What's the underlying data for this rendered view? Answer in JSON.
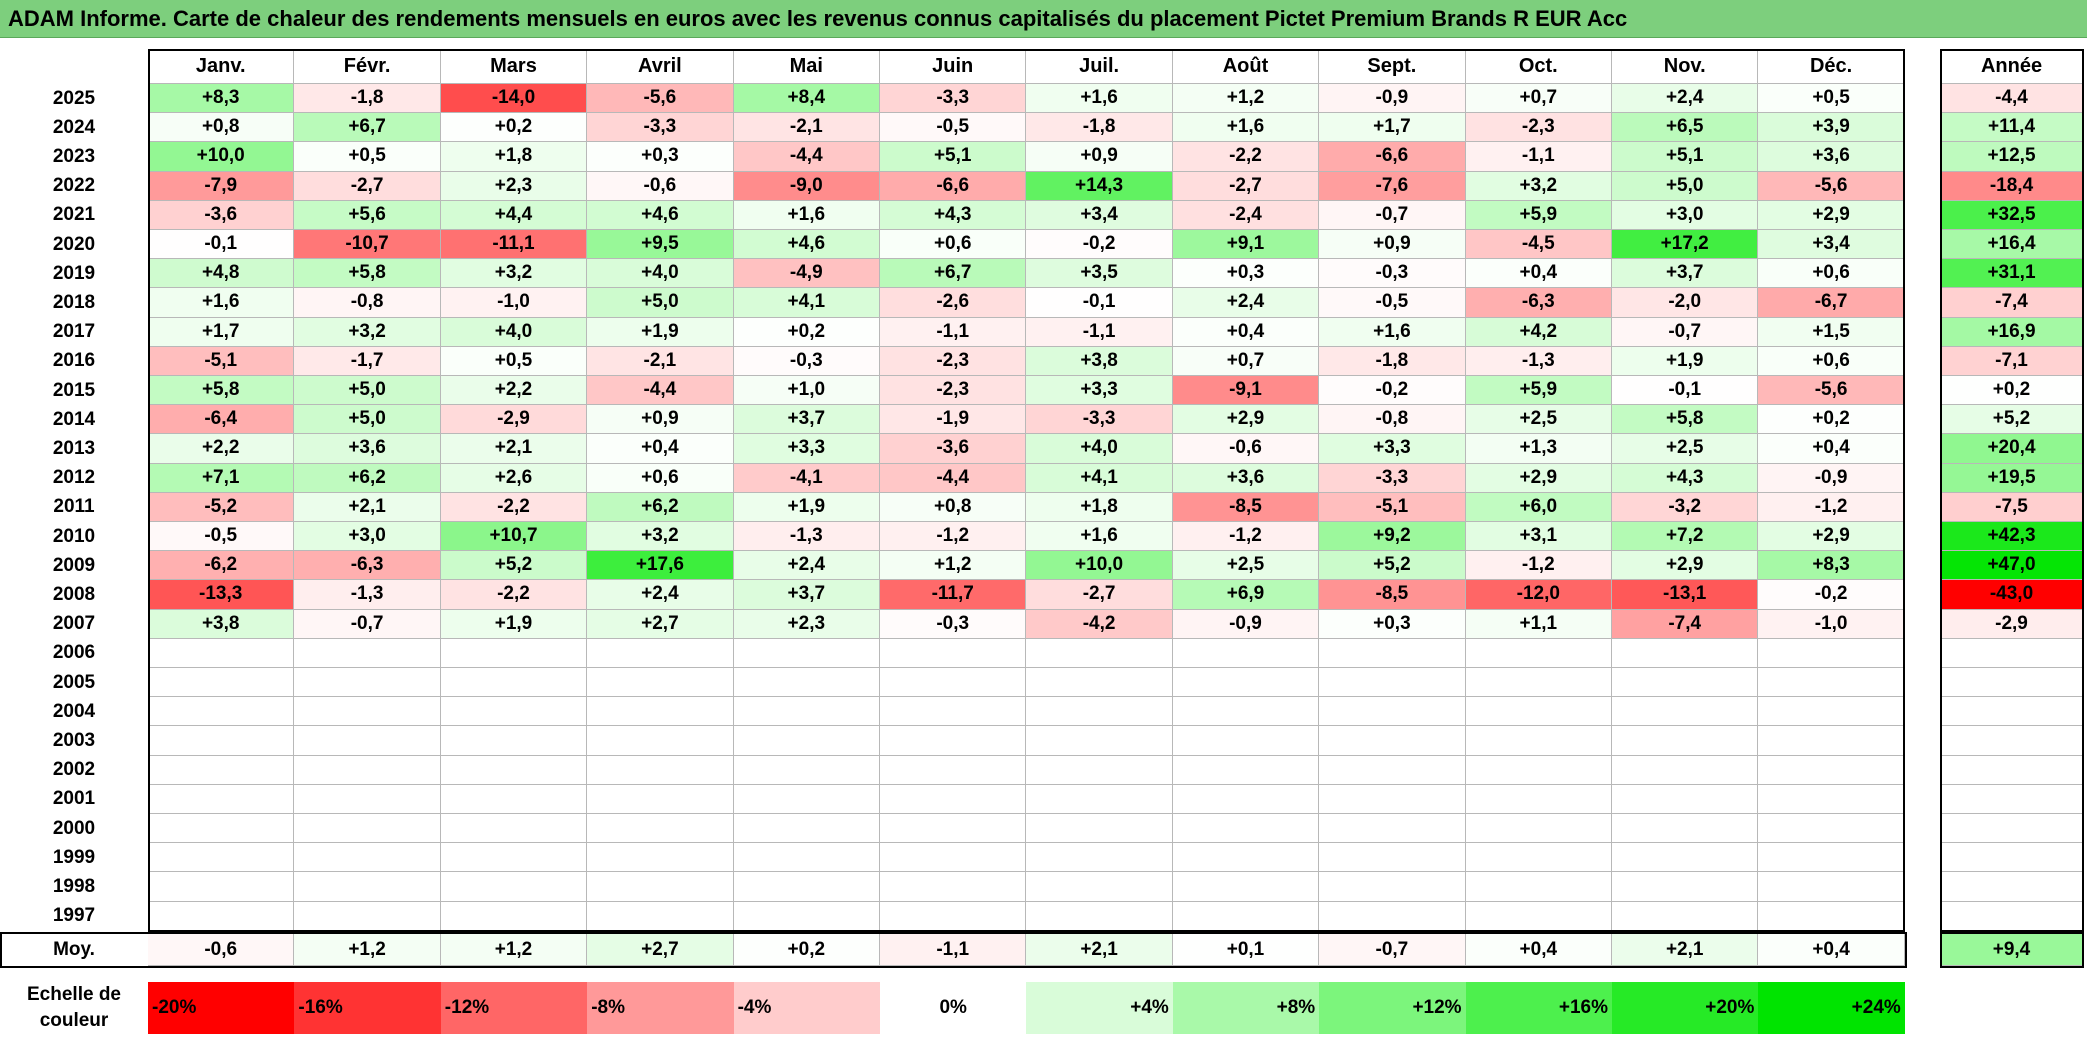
{
  "title": "ADAM Informe. Carte de chaleur des rendements mensuels en euros avec les revenus connus capitalisés du placement Pictet Premium Brands R EUR Acc",
  "chart_data": {
    "type": "heatmap",
    "columns": [
      "Janv.",
      "Févr.",
      "Mars",
      "Avril",
      "Mai",
      "Juin",
      "Juil.",
      "Août",
      "Sept.",
      "Oct.",
      "Nov.",
      "Déc."
    ],
    "annual_header": "Année",
    "rows": [
      {
        "year": "2025",
        "values": [
          "+8,3",
          "-1,8",
          "-14,0",
          "-5,6",
          "+8,4",
          "-3,3",
          "+1,6",
          "+1,2",
          "-0,9",
          "+0,7",
          "+2,4",
          "+0,5"
        ],
        "annual": "-4,4"
      },
      {
        "year": "2024",
        "values": [
          "+0,8",
          "+6,7",
          "+0,2",
          "-3,3",
          "-2,1",
          "-0,5",
          "-1,8",
          "+1,6",
          "+1,7",
          "-2,3",
          "+6,5",
          "+3,9"
        ],
        "annual": "+11,4"
      },
      {
        "year": "2023",
        "values": [
          "+10,0",
          "+0,5",
          "+1,8",
          "+0,3",
          "-4,4",
          "+5,1",
          "+0,9",
          "-2,2",
          "-6,6",
          "-1,1",
          "+5,1",
          "+3,6"
        ],
        "annual": "+12,5"
      },
      {
        "year": "2022",
        "values": [
          "-7,9",
          "-2,7",
          "+2,3",
          "-0,6",
          "-9,0",
          "-6,6",
          "+14,3",
          "-2,7",
          "-7,6",
          "+3,2",
          "+5,0",
          "-5,6"
        ],
        "annual": "-18,4"
      },
      {
        "year": "2021",
        "values": [
          "-3,6",
          "+5,6",
          "+4,4",
          "+4,6",
          "+1,6",
          "+4,3",
          "+3,4",
          "-2,4",
          "-0,7",
          "+5,9",
          "+3,0",
          "+2,9"
        ],
        "annual": "+32,5"
      },
      {
        "year": "2020",
        "values": [
          "-0,1",
          "-10,7",
          "-11,1",
          "+9,5",
          "+4,6",
          "+0,6",
          "-0,2",
          "+9,1",
          "+0,9",
          "-4,5",
          "+17,2",
          "+3,4"
        ],
        "annual": "+16,4"
      },
      {
        "year": "2019",
        "values": [
          "+4,8",
          "+5,8",
          "+3,2",
          "+4,0",
          "-4,9",
          "+6,7",
          "+3,5",
          "+0,3",
          "-0,3",
          "+0,4",
          "+3,7",
          "+0,6"
        ],
        "annual": "+31,1"
      },
      {
        "year": "2018",
        "values": [
          "+1,6",
          "-0,8",
          "-1,0",
          "+5,0",
          "+4,1",
          "-2,6",
          "-0,1",
          "+2,4",
          "-0,5",
          "-6,3",
          "-2,0",
          "-6,7"
        ],
        "annual": "-7,4"
      },
      {
        "year": "2017",
        "values": [
          "+1,7",
          "+3,2",
          "+4,0",
          "+1,9",
          "+0,2",
          "-1,1",
          "-1,1",
          "+0,4",
          "+1,6",
          "+4,2",
          "-0,7",
          "+1,5"
        ],
        "annual": "+16,9"
      },
      {
        "year": "2016",
        "values": [
          "-5,1",
          "-1,7",
          "+0,5",
          "-2,1",
          "-0,3",
          "-2,3",
          "+3,8",
          "+0,7",
          "-1,8",
          "-1,3",
          "+1,9",
          "+0,6"
        ],
        "annual": "-7,1"
      },
      {
        "year": "2015",
        "values": [
          "+5,8",
          "+5,0",
          "+2,2",
          "-4,4",
          "+1,0",
          "-2,3",
          "+3,3",
          "-9,1",
          "-0,2",
          "+5,9",
          "-0,1",
          "-5,6"
        ],
        "annual": "+0,2"
      },
      {
        "year": "2014",
        "values": [
          "-6,4",
          "+5,0",
          "-2,9",
          "+0,9",
          "+3,7",
          "-1,9",
          "-3,3",
          "+2,9",
          "-0,8",
          "+2,5",
          "+5,8",
          "+0,2"
        ],
        "annual": "+5,2"
      },
      {
        "year": "2013",
        "values": [
          "+2,2",
          "+3,6",
          "+2,1",
          "+0,4",
          "+3,3",
          "-3,6",
          "+4,0",
          "-0,6",
          "+3,3",
          "+1,3",
          "+2,5",
          "+0,4"
        ],
        "annual": "+20,4"
      },
      {
        "year": "2012",
        "values": [
          "+7,1",
          "+6,2",
          "+2,6",
          "+0,6",
          "-4,1",
          "-4,4",
          "+4,1",
          "+3,6",
          "-3,3",
          "+2,9",
          "+4,3",
          "-0,9"
        ],
        "annual": "+19,5"
      },
      {
        "year": "2011",
        "values": [
          "-5,2",
          "+2,1",
          "-2,2",
          "+6,2",
          "+1,9",
          "+0,8",
          "+1,8",
          "-8,5",
          "-5,1",
          "+6,0",
          "-3,2",
          "-1,2"
        ],
        "annual": "-7,5"
      },
      {
        "year": "2010",
        "values": [
          "-0,5",
          "+3,0",
          "+10,7",
          "+3,2",
          "-1,3",
          "-1,2",
          "+1,6",
          "-1,2",
          "+9,2",
          "+3,1",
          "+7,2",
          "+2,9"
        ],
        "annual": "+42,3"
      },
      {
        "year": "2009",
        "values": [
          "-6,2",
          "-6,3",
          "+5,2",
          "+17,6",
          "+2,4",
          "+1,2",
          "+10,0",
          "+2,5",
          "+5,2",
          "-1,2",
          "+2,9",
          "+8,3"
        ],
        "annual": "+47,0"
      },
      {
        "year": "2008",
        "values": [
          "-13,3",
          "-1,3",
          "-2,2",
          "+2,4",
          "+3,7",
          "-11,7",
          "-2,7",
          "+6,9",
          "-8,5",
          "-12,0",
          "-13,1",
          "-0,2"
        ],
        "annual": "-43,0"
      },
      {
        "year": "2007",
        "values": [
          "+3,8",
          "-0,7",
          "+1,9",
          "+2,7",
          "+2,3",
          "-0,3",
          "-4,2",
          "-0,9",
          "+0,3",
          "+1,1",
          "-7,4",
          "-1,0"
        ],
        "annual": "-2,9"
      },
      {
        "year": "2006",
        "values": [
          "",
          "",
          "",
          "",
          "",
          "",
          "",
          "",
          "",
          "",
          "",
          ""
        ],
        "annual": ""
      },
      {
        "year": "2005",
        "values": [
          "",
          "",
          "",
          "",
          "",
          "",
          "",
          "",
          "",
          "",
          "",
          ""
        ],
        "annual": ""
      },
      {
        "year": "2004",
        "values": [
          "",
          "",
          "",
          "",
          "",
          "",
          "",
          "",
          "",
          "",
          "",
          ""
        ],
        "annual": ""
      },
      {
        "year": "2003",
        "values": [
          "",
          "",
          "",
          "",
          "",
          "",
          "",
          "",
          "",
          "",
          "",
          ""
        ],
        "annual": ""
      },
      {
        "year": "2002",
        "values": [
          "",
          "",
          "",
          "",
          "",
          "",
          "",
          "",
          "",
          "",
          "",
          ""
        ],
        "annual": ""
      },
      {
        "year": "2001",
        "values": [
          "",
          "",
          "",
          "",
          "",
          "",
          "",
          "",
          "",
          "",
          "",
          ""
        ],
        "annual": ""
      },
      {
        "year": "2000",
        "values": [
          "",
          "",
          "",
          "",
          "",
          "",
          "",
          "",
          "",
          "",
          "",
          ""
        ],
        "annual": ""
      },
      {
        "year": "1999",
        "values": [
          "",
          "",
          "",
          "",
          "",
          "",
          "",
          "",
          "",
          "",
          "",
          ""
        ],
        "annual": ""
      },
      {
        "year": "1998",
        "values": [
          "",
          "",
          "",
          "",
          "",
          "",
          "",
          "",
          "",
          "",
          "",
          ""
        ],
        "annual": ""
      },
      {
        "year": "1997",
        "values": [
          "",
          "",
          "",
          "",
          "",
          "",
          "",
          "",
          "",
          "",
          "",
          ""
        ],
        "annual": ""
      }
    ],
    "average": {
      "label": "Moy.",
      "values": [
        "-0,6",
        "+1,2",
        "+1,2",
        "+2,7",
        "+0,2",
        "-1,1",
        "+2,1",
        "+0,1",
        "-0,7",
        "+0,4",
        "+2,1",
        "+0,4"
      ],
      "annual": "+9,4"
    },
    "color_scale": {
      "label": "Echelle de couleur",
      "stops": [
        {
          "label": "-20%",
          "value": -20,
          "color": "#ff0000"
        },
        {
          "label": "-16%",
          "value": -16,
          "color": "#ff3333"
        },
        {
          "label": "-12%",
          "value": -12,
          "color": "#ff6666"
        },
        {
          "label": "-8%",
          "value": -8,
          "color": "#ff9999"
        },
        {
          "label": "-4%",
          "value": -4,
          "color": "#ffcccc"
        },
        {
          "label": "0%",
          "value": 0,
          "color": "#ffffff"
        },
        {
          "label": "+4%",
          "value": 4,
          "color": "#d9fcd9"
        },
        {
          "label": "+8%",
          "value": 8,
          "color": "#a9f9a9"
        },
        {
          "label": "+12%",
          "value": 12,
          "color": "#7cf57c"
        },
        {
          "label": "+16%",
          "value": 16,
          "color": "#4df04d"
        },
        {
          "label": "+20%",
          "value": 20,
          "color": "#26ea26"
        },
        {
          "label": "+24%",
          "value": 24,
          "color": "#00e400"
        }
      ]
    }
  }
}
